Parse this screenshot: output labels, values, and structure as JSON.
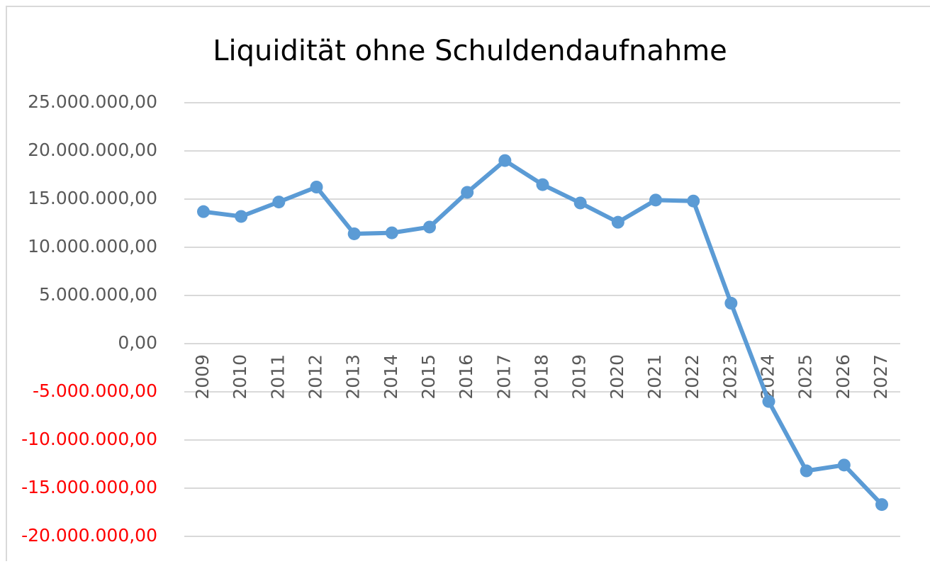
{
  "chart_data": {
    "type": "line",
    "title": "Liquidität ohne Schuldendaufnahme",
    "categories": [
      "2009",
      "2010",
      "2011",
      "2012",
      "2013",
      "2014",
      "2015",
      "2016",
      "2017",
      "2018",
      "2019",
      "2020",
      "2021",
      "2022",
      "2023",
      "2024",
      "2025",
      "2026",
      "2027"
    ],
    "series": [
      {
        "name": "Liquidität",
        "color": "#5b9bd5",
        "values": [
          13700000,
          13200000,
          14700000,
          16250000,
          11400000,
          11500000,
          12100000,
          15700000,
          19000000,
          16500000,
          14600000,
          12600000,
          14900000,
          14800000,
          4200000,
          -6000000,
          -13200000,
          -12600000,
          -16700000
        ]
      }
    ],
    "ylim": [
      -20000000,
      25000000
    ],
    "yticks": [
      {
        "value": -20000000,
        "label": "-20.000.000,00"
      },
      {
        "value": -15000000,
        "label": "-15.000.000,00"
      },
      {
        "value": -10000000,
        "label": "-10.000.000,00"
      },
      {
        "value": -5000000,
        "label": "-5.000.000,00"
      },
      {
        "value": 0,
        "label": "0,00"
      },
      {
        "value": 5000000,
        "label": "5.000.000,00"
      },
      {
        "value": 10000000,
        "label": "10.000.000,00"
      },
      {
        "value": 15000000,
        "label": "15.000.000,00"
      },
      {
        "value": 20000000,
        "label": "20.000.000,00"
      },
      {
        "value": 25000000,
        "label": "25.000.000,00"
      }
    ],
    "grid": true,
    "negative_tick_color": "#ff0000",
    "tick_color": "#595959"
  }
}
